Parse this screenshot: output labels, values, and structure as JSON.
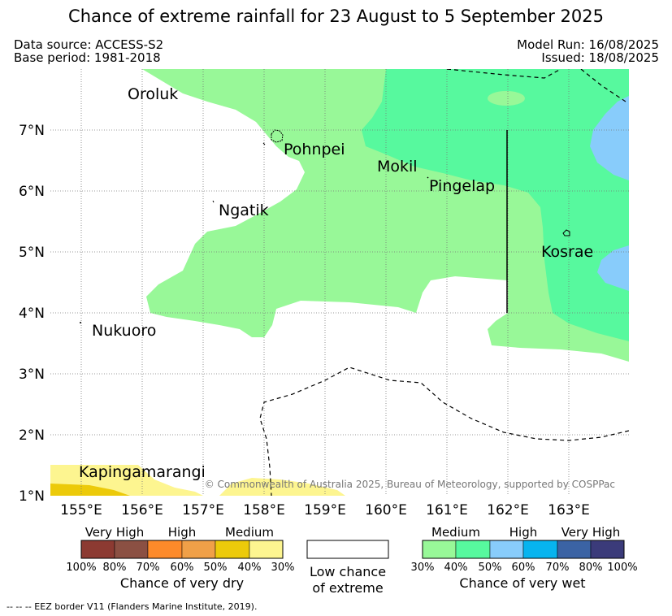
{
  "title": "Chance of extreme rainfall for 23 August to 5 September 2025",
  "header": {
    "data_source": "Data source: ACCESS-S2",
    "base_period": "Base period: 1981-2018",
    "model_run": "Model Run: 16/08/2025",
    "issued": "Issued: 18/08/2025"
  },
  "map": {
    "lon_labels": [
      "155°E",
      "156°E",
      "157°E",
      "158°E",
      "159°E",
      "160°E",
      "161°E",
      "162°E",
      "163°E"
    ],
    "lat_labels": [
      "7°N",
      "6°N",
      "5°N",
      "4°N",
      "3°N",
      "2°N",
      "1°N"
    ],
    "places": [
      "Oroluk",
      "Pohnpei",
      "Mokil",
      "Pingelap",
      "Ngatik",
      "Kosrae",
      "Nukuoro",
      "Kapingamarangi"
    ],
    "copyright": "© Commonwealth of Australia 2025, Bureau of Meteorology, supported by COSPPac",
    "colors": {
      "wet_medium": "#98f898",
      "wet_medium_high": "#57f99e",
      "wet_high": "#88ccfb",
      "dry_medium_low": "#fdf590",
      "dry_medium": "#ecca0a"
    }
  },
  "legend_dry": {
    "categories": [
      "Very High",
      "High",
      "Medium"
    ],
    "colors": [
      "#8c3a32",
      "#8b5043",
      "#fd8a2a",
      "#f0a048",
      "#ecca0a",
      "#fdf590"
    ],
    "ticks": [
      "100%",
      "80%",
      "70%",
      "60%",
      "50%",
      "40%",
      "30%"
    ],
    "title": "Chance of very dry"
  },
  "legend_low": {
    "title_line1": "Low chance",
    "title_line2": "of extreme"
  },
  "legend_wet": {
    "categories": [
      "Medium",
      "High",
      "Very High"
    ],
    "colors": [
      "#98f898",
      "#57f99e",
      "#88ccfb",
      "#07b4ef",
      "#3b63a4",
      "#3b3b7a"
    ],
    "ticks": [
      "30%",
      "40%",
      "50%",
      "60%",
      "70%",
      "80%",
      "100%"
    ],
    "title": "Chance of very wet"
  },
  "footnote": "--  --  -- EEZ border V11 (Flanders Marine Institute, 2019)."
}
